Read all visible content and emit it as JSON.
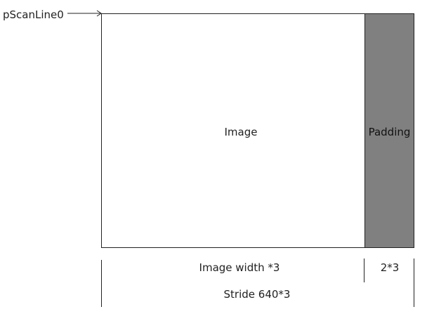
{
  "diagram": {
    "pointer_label": "pScanLine0",
    "image_label": "Image",
    "padding_label": "Padding",
    "image_width_label": "Image width *3",
    "padding_width_label": "2*3",
    "stride_label": "Stride 640*3"
  },
  "colors": {
    "padding_fill": "#808080",
    "stroke": "#222222",
    "background": "#ffffff"
  }
}
